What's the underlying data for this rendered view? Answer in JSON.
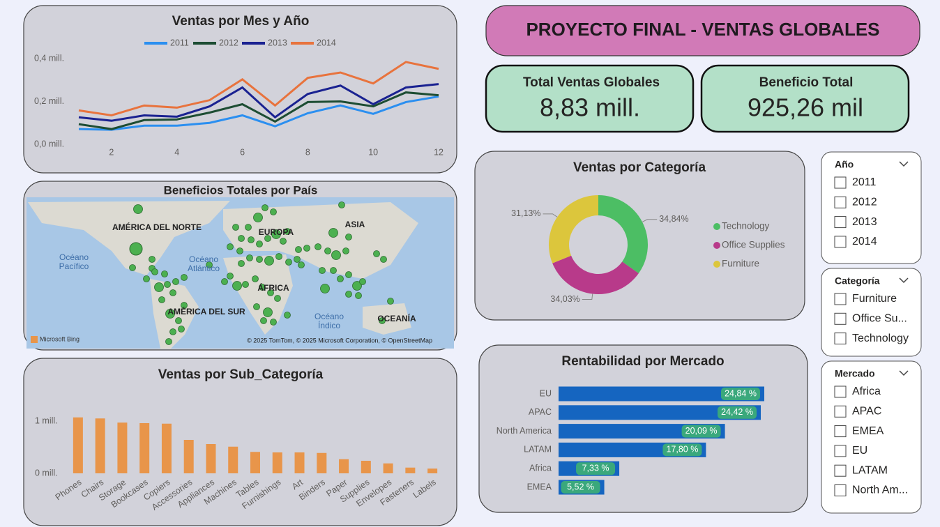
{
  "header": {
    "title": "PROYECTO FINAL - VENTAS GLOBALES"
  },
  "kpis": [
    {
      "label": "Total Ventas Globales",
      "value": "8,83 mill."
    },
    {
      "label": "Beneficio Total",
      "value": "925,26 mil"
    }
  ],
  "chart_data": [
    {
      "type": "line",
      "title": "Ventas por Mes y Año",
      "x": [
        1,
        2,
        3,
        4,
        5,
        6,
        7,
        8,
        9,
        10,
        11,
        12
      ],
      "xlim": [
        1,
        12
      ],
      "xticks": [
        2,
        4,
        6,
        8,
        10,
        12
      ],
      "ylim": [
        0,
        0.4
      ],
      "yticks": [
        {
          "value": 0,
          "label": "0,0 mill."
        },
        {
          "value": 0.2,
          "label": "0,2 mill."
        },
        {
          "value": 0.4,
          "label": "0,4 mill."
        }
      ],
      "grid": false,
      "series": [
        {
          "name": "2011",
          "color": "#2b8ff0",
          "values": [
            0.071,
            0.068,
            0.087,
            0.087,
            0.1,
            0.135,
            0.084,
            0.145,
            0.181,
            0.142,
            0.197,
            0.223
          ]
        },
        {
          "name": "2012",
          "color": "#1d4d33",
          "values": [
            0.094,
            0.071,
            0.113,
            0.116,
            0.148,
            0.187,
            0.106,
            0.197,
            0.2,
            0.177,
            0.242,
            0.229
          ]
        },
        {
          "name": "2013",
          "color": "#1a2291",
          "values": [
            0.126,
            0.11,
            0.135,
            0.129,
            0.177,
            0.265,
            0.126,
            0.235,
            0.274,
            0.187,
            0.265,
            0.281
          ]
        },
        {
          "name": "2014",
          "color": "#e8733d",
          "values": [
            0.158,
            0.135,
            0.181,
            0.171,
            0.206,
            0.303,
            0.181,
            0.31,
            0.335,
            0.284,
            0.384,
            0.352
          ]
        }
      ]
    },
    {
      "type": "bar",
      "title": "Ventas por Sub_Categoría",
      "color": "#e8954a",
      "categories": [
        "Phones",
        "Chairs",
        "Storage",
        "Bookcases",
        "Copiers",
        "Accessories",
        "Appliances",
        "Machines",
        "Tables",
        "Furnishings",
        "Art",
        "Binders",
        "Paper",
        "Supplies",
        "Envelopes",
        "Fasteners",
        "Labels"
      ],
      "values": [
        1.07,
        1.05,
        0.97,
        0.96,
        0.95,
        0.64,
        0.56,
        0.51,
        0.41,
        0.4,
        0.4,
        0.39,
        0.27,
        0.24,
        0.19,
        0.11,
        0.09
      ],
      "ylim": [
        0,
        1.1
      ],
      "yticks": [
        {
          "value": 0,
          "label": "0 mill."
        },
        {
          "value": 1,
          "label": "1 mill."
        }
      ]
    },
    {
      "type": "donut",
      "title": "Ventas por Categoría",
      "categories": [
        "Technology",
        "Office Supplies",
        "Furniture"
      ],
      "values": [
        34.84,
        34.03,
        31.13
      ],
      "value_labels": [
        "34,84%",
        "34,03%",
        "31,13%"
      ],
      "colors": [
        "#4cbe64",
        "#b83a8a",
        "#dcc63c"
      ]
    },
    {
      "type": "barh",
      "title": "Rentabilidad por Mercado",
      "color": "#1565c0",
      "label_color": "#3aa87c",
      "categories": [
        "EU",
        "APAC",
        "North America",
        "LATAM",
        "Africa",
        "EMEA"
      ],
      "values": [
        24.84,
        24.42,
        20.09,
        17.8,
        7.33,
        5.52
      ],
      "value_labels": [
        "24,84 %",
        "24,42 %",
        "20,09 %",
        "17,80 %",
        "7,33 %",
        "5,52 %"
      ]
    }
  ],
  "map": {
    "title": "Beneficios Totales por País",
    "labels": [
      {
        "lines": [
          "AMÉRICA DEL NORTE"
        ]
      },
      {
        "lines": [
          "EUROPA"
        ]
      },
      {
        "lines": [
          "ASIA"
        ]
      },
      {
        "lines": [
          "Océano",
          "Pacífico"
        ]
      },
      {
        "lines": [
          "Océano",
          "Atlántico"
        ]
      },
      {
        "lines": [
          "ÁFRICA"
        ]
      },
      {
        "lines": [
          "AMÉRICA DEL SUR"
        ]
      },
      {
        "lines": [
          "Océano",
          "Índico"
        ]
      },
      {
        "lines": [
          "OCEANÍA"
        ]
      }
    ],
    "logo": "Microsoft Bing",
    "attribution": "© 2025 TomTom, © 2025 Microsoft Corporation, © OpenStreetMap"
  },
  "slicers": [
    {
      "title": "Año",
      "items": [
        "2011",
        "2012",
        "2013",
        "2014"
      ]
    },
    {
      "title": "Categoría",
      "items": [
        "Furniture",
        "Office Su...",
        "Technology"
      ]
    },
    {
      "title": "Mercado",
      "items": [
        "Africa",
        "APAC",
        "EMEA",
        "EU",
        "LATAM",
        "North Am..."
      ]
    }
  ]
}
